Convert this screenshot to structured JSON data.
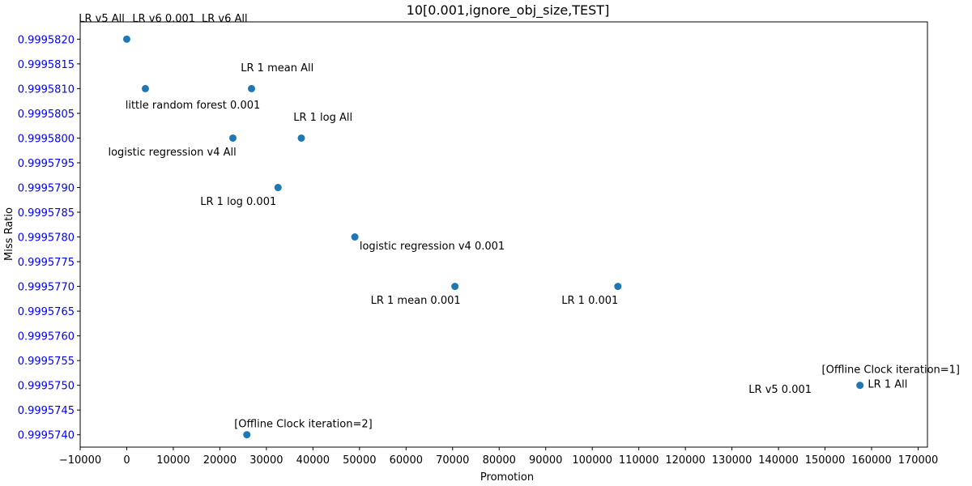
{
  "colors": {
    "point": "#1f77b4",
    "ytick": "#0000ff",
    "axis": "#000000"
  },
  "chart_data": {
    "type": "scatter",
    "title": "10[0.001,ignore_obj_size,TEST]",
    "xlabel": "Promotion",
    "ylabel": "Miss Ratio",
    "xlim": [
      -10000,
      172000
    ],
    "ylim": [
      0.99957375,
      0.99958235
    ],
    "x_ticks": [
      -10000,
      0,
      10000,
      20000,
      30000,
      40000,
      50000,
      60000,
      70000,
      80000,
      90000,
      100000,
      110000,
      120000,
      130000,
      140000,
      150000,
      160000,
      170000
    ],
    "x_tick_labels": [
      "−10000",
      "0",
      "10000",
      "20000",
      "30000",
      "40000",
      "50000",
      "60000",
      "70000",
      "80000",
      "90000",
      "100000",
      "110000",
      "120000",
      "130000",
      "140000",
      "150000",
      "160000",
      "170000"
    ],
    "y_ticks": [
      0.999574,
      0.9995745,
      0.999575,
      0.9995755,
      0.999576,
      0.9995765,
      0.999577,
      0.9995775,
      0.999578,
      0.9995785,
      0.999579,
      0.9995795,
      0.99958,
      0.9995805,
      0.999581,
      0.9995815,
      0.999582
    ],
    "y_tick_labels": [
      "0.9995740",
      "0.9995745",
      "0.9995750",
      "0.9995755",
      "0.9995760",
      "0.9995765",
      "0.9995770",
      "0.9995775",
      "0.9995780",
      "0.9995785",
      "0.9995790",
      "0.9995795",
      "0.9995800",
      "0.9995805",
      "0.9995810",
      "0.9995815",
      "0.9995820"
    ],
    "grid": false,
    "points": [
      {
        "x": 0,
        "y": 0.999582
      },
      {
        "x": 4000,
        "y": 0.999581
      },
      {
        "x": 26800,
        "y": 0.999581
      },
      {
        "x": 22800,
        "y": 0.99958
      },
      {
        "x": 37500,
        "y": 0.99958
      },
      {
        "x": 32500,
        "y": 0.999579
      },
      {
        "x": 49000,
        "y": 0.999578
      },
      {
        "x": 70500,
        "y": 0.999577
      },
      {
        "x": 105500,
        "y": 0.999577
      },
      {
        "x": 157500,
        "y": 0.999575
      },
      {
        "x": 25800,
        "y": 0.999574
      }
    ],
    "annotations": [
      {
        "text": "LR v5 All",
        "x": -10300,
        "y": 0.99958235,
        "anchor": "start"
      },
      {
        "text": "LR v6 0.001",
        "x": 1200,
        "y": 0.99958235,
        "anchor": "start"
      },
      {
        "text": "LR v6 All",
        "x": 16100,
        "y": 0.99958235,
        "anchor": "start"
      },
      {
        "text": "little random forest 0.001",
        "x": -300,
        "y": 0.9995806,
        "anchor": "start"
      },
      {
        "text": "LR 1 mean All",
        "x": 24500,
        "y": 0.99958135,
        "anchor": "start"
      },
      {
        "text": "LR 1 log All",
        "x": 35800,
        "y": 0.99958035,
        "anchor": "start"
      },
      {
        "text": "logistic regression v4 All",
        "x": -4000,
        "y": 0.99957965,
        "anchor": "start"
      },
      {
        "text": "LR 1 log 0.001",
        "x": 15800,
        "y": 0.99957865,
        "anchor": "start"
      },
      {
        "text": "logistic regression v4 0.001",
        "x": 50000,
        "y": 0.99957775,
        "anchor": "start"
      },
      {
        "text": "LR 1 mean 0.001",
        "x": 52400,
        "y": 0.99957665,
        "anchor": "start"
      },
      {
        "text": "LR 1 0.001",
        "x": 93400,
        "y": 0.99957665,
        "anchor": "start"
      },
      {
        "text": "[Offline Clock iteration=1]",
        "x": 149300,
        "y": 0.99957525,
        "anchor": "start"
      },
      {
        "text": "LR 1 All",
        "x": 159200,
        "y": 0.99957495,
        "anchor": "start"
      },
      {
        "text": "LR v5 0.001",
        "x": 133600,
        "y": 0.99957485,
        "anchor": "start"
      },
      {
        "text": "[Offline Clock iteration=2]",
        "x": 23100,
        "y": 0.99957415,
        "anchor": "start"
      }
    ]
  }
}
